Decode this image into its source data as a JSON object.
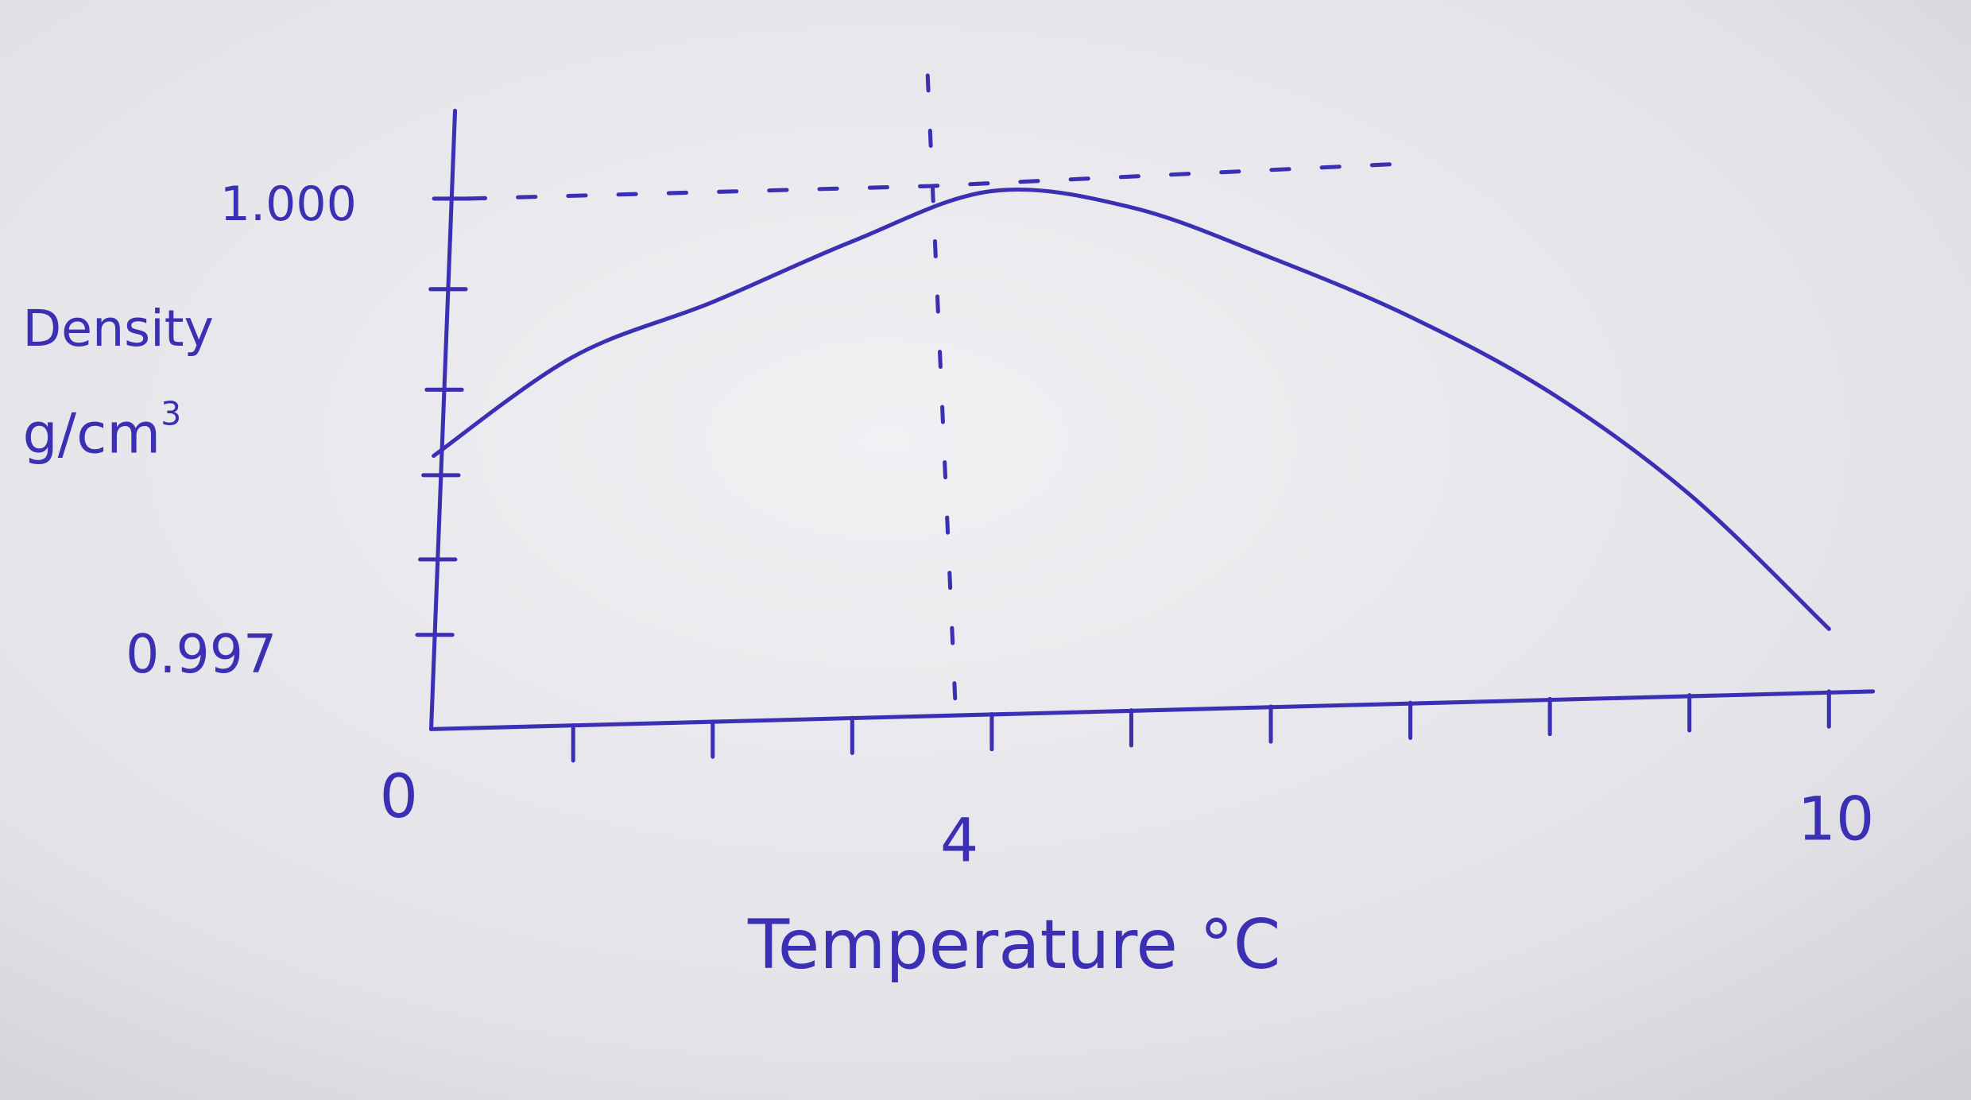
{
  "chart_data": {
    "type": "line",
    "title": "",
    "xlabel": "Temperature °C",
    "ylabel": "Density",
    "ylabel_unit": "g/cm",
    "ylabel_unit_exp": "3",
    "xlim": [
      0,
      10
    ],
    "ylim": [
      0.9965,
      1.0005
    ],
    "x_tick_labels": [
      "0",
      "4",
      "10"
    ],
    "y_tick_labels": [
      "1.000",
      "0.997"
    ],
    "grid": false,
    "series": [
      {
        "x": [
          0,
          1,
          2,
          3,
          4,
          5,
          6,
          7,
          8,
          9,
          10
        ],
        "y": [
          0.99821,
          0.99888,
          0.99925,
          0.99966,
          1.0,
          0.99989,
          0.99955,
          0.99915,
          0.99864,
          0.99795,
          0.99704
        ]
      }
    ],
    "annotation": "dashed guide lines marking maximum density at 4 °C",
    "ink_color": "#3b30b4",
    "paper_color": "#e4e4e8"
  }
}
